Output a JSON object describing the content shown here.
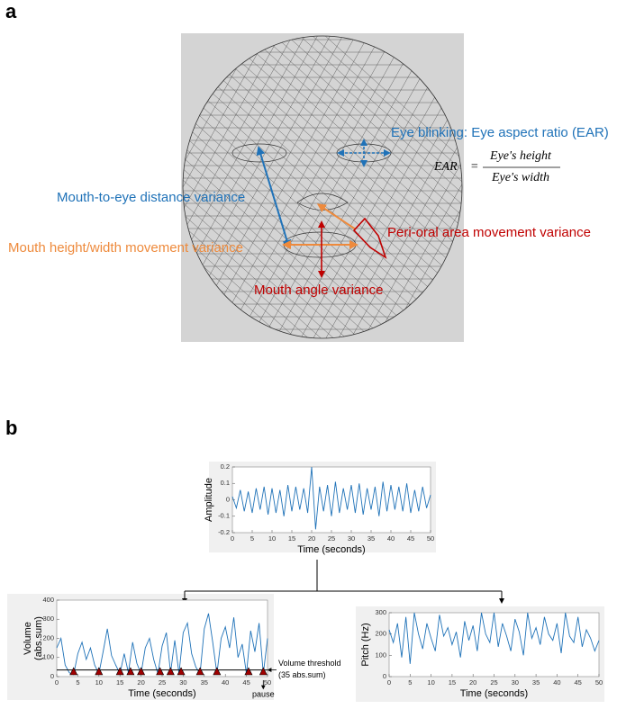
{
  "panel_a": {
    "label": "a",
    "eye_blinking": "Eye blinking: Eye aspect ratio (EAR)",
    "formula": {
      "lhs": "EAR",
      "equals": "=",
      "numerator": "Eye's height",
      "denominator": "Eye's width"
    },
    "mouth_to_eye": "Mouth-to-eye distance variance",
    "mouth_height_width": "Mouth height/width movement variance",
    "peri_oral": "Peri-oral area movement variance",
    "mouth_angle": "Mouth angle variance"
  },
  "panel_b": {
    "label": "b",
    "threshold_label": [
      "Volume threshold",
      "(35 abs.sum)"
    ],
    "pause_label": "pause"
  },
  "chart_data": [
    {
      "type": "line",
      "xlabel": "Time (seconds)",
      "ylabel": [
        "Amplitude"
      ],
      "color": "#1f72b8",
      "xlim": [
        0,
        50
      ],
      "ylim": [
        -0.2,
        0.2
      ],
      "xticks": [
        0,
        5,
        10,
        15,
        20,
        25,
        30,
        35,
        40,
        45,
        50
      ],
      "yticks": [
        -0.2,
        -0.1,
        0,
        0.1,
        0.2
      ],
      "x": [
        0,
        1,
        2,
        3,
        4,
        5,
        6,
        7,
        8,
        9,
        10,
        11,
        12,
        13,
        14,
        15,
        16,
        17,
        18,
        19,
        20,
        21,
        22,
        23,
        24,
        25,
        26,
        27,
        28,
        29,
        30,
        31,
        32,
        33,
        34,
        35,
        36,
        37,
        38,
        39,
        40,
        41,
        42,
        43,
        44,
        45,
        46,
        47,
        48,
        49,
        50
      ],
      "values": [
        0.02,
        -0.05,
        0.06,
        -0.07,
        0.05,
        -0.08,
        0.07,
        -0.06,
        0.08,
        -0.09,
        0.07,
        -0.08,
        0.06,
        -0.1,
        0.09,
        -0.07,
        0.08,
        -0.06,
        0.07,
        -0.08,
        0.2,
        -0.18,
        0.08,
        -0.07,
        0.09,
        -0.1,
        0.11,
        -0.08,
        0.07,
        -0.06,
        0.09,
        -0.08,
        0.1,
        -0.09,
        0.07,
        -0.06,
        0.08,
        -0.1,
        0.11,
        -0.07,
        0.09,
        -0.06,
        0.08,
        -0.07,
        0.1,
        -0.08,
        0.06,
        -0.07,
        0.08,
        -0.05,
        0.03
      ]
    },
    {
      "type": "line",
      "xlabel": "Time (seconds)",
      "ylabel": [
        "Volume",
        "(abs.sum)"
      ],
      "color": "#1f72b8",
      "xlim": [
        0,
        50
      ],
      "ylim": [
        0,
        400
      ],
      "xticks": [
        0,
        5,
        10,
        15,
        20,
        25,
        30,
        35,
        40,
        45,
        50
      ],
      "yticks": [
        0,
        100,
        200,
        300,
        400
      ],
      "x": [
        0,
        1,
        2,
        3,
        4,
        5,
        6,
        7,
        8,
        9,
        10,
        11,
        12,
        13,
        14,
        15,
        16,
        17,
        18,
        19,
        20,
        21,
        22,
        23,
        24,
        25,
        26,
        27,
        28,
        29,
        30,
        31,
        32,
        33,
        34,
        35,
        36,
        37,
        38,
        39,
        40,
        41,
        42,
        43,
        44,
        45,
        46,
        47,
        48,
        49,
        50
      ],
      "values": [
        150,
        200,
        60,
        20,
        10,
        120,
        180,
        90,
        150,
        60,
        15,
        130,
        250,
        110,
        60,
        15,
        120,
        20,
        180,
        70,
        15,
        150,
        200,
        90,
        15,
        160,
        230,
        20,
        190,
        15,
        230,
        280,
        120,
        50,
        15,
        250,
        330,
        180,
        15,
        200,
        260,
        150,
        310,
        100,
        170,
        15,
        240,
        130,
        280,
        15,
        200
      ],
      "threshold": 35,
      "pauses": [
        4,
        10,
        15,
        17.5,
        20,
        24.5,
        27,
        29.5,
        34,
        38,
        45.5,
        49
      ]
    },
    {
      "type": "line",
      "xlabel": "Time (seconds)",
      "ylabel": [
        "Pitch (Hz)"
      ],
      "color": "#1f72b8",
      "xlim": [
        0,
        50
      ],
      "ylim": [
        0,
        300
      ],
      "xticks": [
        0,
        5,
        10,
        15,
        20,
        25,
        30,
        35,
        40,
        45,
        50
      ],
      "yticks": [
        0,
        100,
        200,
        300
      ],
      "x": [
        0,
        1,
        2,
        3,
        4,
        5,
        6,
        7,
        8,
        9,
        10,
        11,
        12,
        13,
        14,
        15,
        16,
        17,
        18,
        19,
        20,
        21,
        22,
        23,
        24,
        25,
        26,
        27,
        28,
        29,
        30,
        31,
        32,
        33,
        34,
        35,
        36,
        37,
        38,
        39,
        40,
        41,
        42,
        43,
        44,
        45,
        46,
        47,
        48,
        49,
        50
      ],
      "values": [
        220,
        160,
        250,
        90,
        280,
        60,
        300,
        200,
        130,
        250,
        180,
        120,
        290,
        190,
        230,
        150,
        210,
        90,
        260,
        170,
        240,
        120,
        300,
        200,
        160,
        300,
        140,
        250,
        190,
        120,
        270,
        210,
        100,
        300,
        180,
        230,
        150,
        280,
        200,
        170,
        250,
        110,
        300,
        190,
        160,
        280,
        140,
        220,
        180,
        120,
        170
      ]
    }
  ]
}
